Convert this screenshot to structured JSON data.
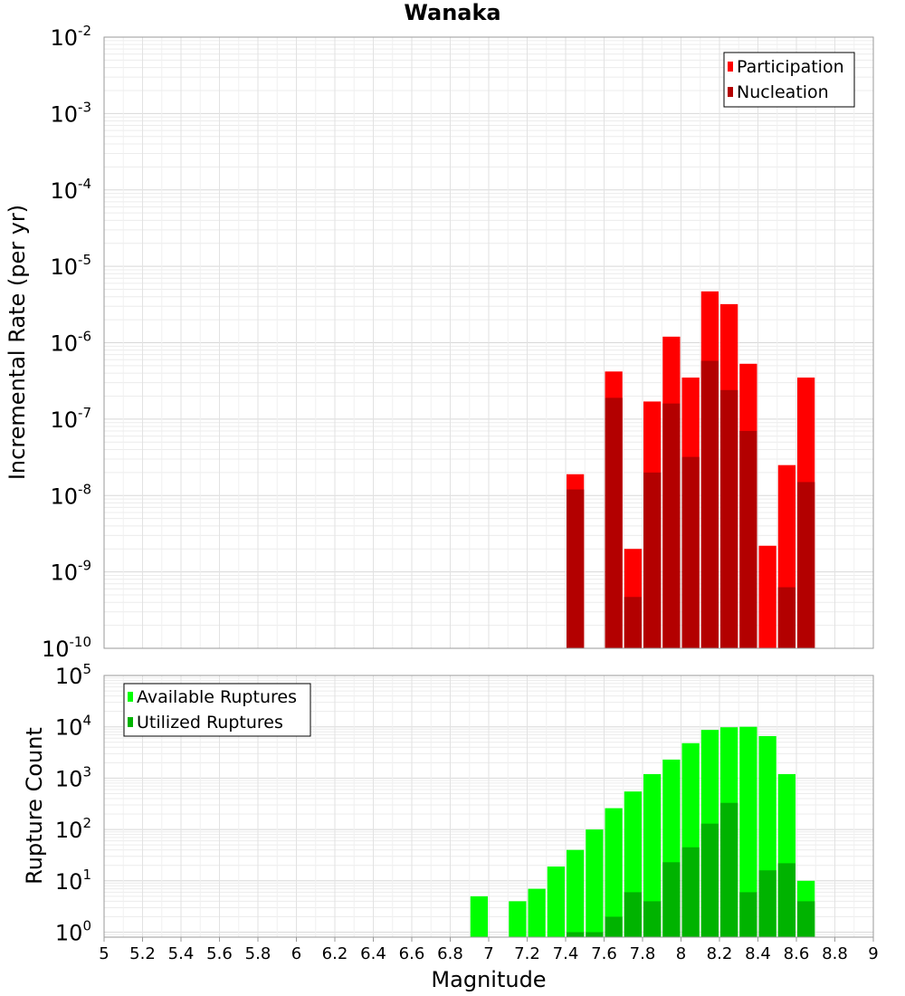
{
  "chart_data": [
    {
      "type": "bar",
      "title": "Wanaka",
      "xlabel": "",
      "ylabel": "Incremental Rate (per yr)",
      "yscale": "log",
      "ylim": [
        1e-10,
        0.01
      ],
      "xlim": [
        5,
        9
      ],
      "y_tick_exponents": [
        "-2",
        "-3",
        "-4",
        "-5",
        "-6",
        "-7",
        "-8",
        "-9",
        "-10"
      ],
      "grid": true,
      "legend_position": "top-right",
      "bar_width": 0.1,
      "series": [
        {
          "name": "Participation",
          "color": "#ff0000",
          "x": [
            7.45,
            7.65,
            7.75,
            7.85,
            7.95,
            8.05,
            8.15,
            8.25,
            8.35,
            8.45,
            8.55,
            8.65
          ],
          "values": [
            1.9e-08,
            4.2e-07,
            2e-09,
            1.7e-07,
            1.2e-06,
            3.5e-07,
            4.7e-06,
            3.2e-06,
            5.3e-07,
            2.2e-09,
            2.5e-08,
            3.5e-07
          ]
        },
        {
          "name": "Nucleation",
          "color": "#b30000",
          "x": [
            7.45,
            7.65,
            7.75,
            7.85,
            7.95,
            8.05,
            8.15,
            8.25,
            8.35,
            8.55,
            8.65
          ],
          "values": [
            1.2e-08,
            1.9e-07,
            4.7e-10,
            2e-08,
            1.6e-07,
            3.2e-08,
            5.8e-07,
            2.4e-07,
            7e-08,
            6.3e-10,
            1.5e-08
          ]
        }
      ]
    },
    {
      "type": "bar",
      "title": "",
      "xlabel": "Magnitude",
      "ylabel": "Rupture Count",
      "yscale": "log",
      "ylim": [
        0.8,
        100000.0
      ],
      "xlim": [
        5,
        9
      ],
      "x_ticks": [
        "5",
        "5.2",
        "5.4",
        "5.6",
        "5.8",
        "6",
        "6.2",
        "6.4",
        "6.6",
        "6.8",
        "7",
        "7.2",
        "7.4",
        "7.6",
        "7.8",
        "8",
        "8.2",
        "8.4",
        "8.6",
        "8.8",
        "9"
      ],
      "y_tick_exponents": [
        "5",
        "4",
        "3",
        "2",
        "1",
        "0"
      ],
      "grid": true,
      "legend_position": "top-left",
      "bar_width": 0.1,
      "series": [
        {
          "name": "Available Ruptures",
          "color": "#00ff00",
          "x": [
            6.95,
            7.15,
            7.25,
            7.35,
            7.45,
            7.55,
            7.65,
            7.75,
            7.85,
            7.95,
            8.05,
            8.15,
            8.25,
            8.35,
            8.45,
            8.55,
            8.65
          ],
          "values": [
            5,
            4,
            7,
            19,
            40,
            100,
            260,
            550,
            1200,
            2300,
            4800,
            8700,
            9800,
            10000,
            6600,
            1200,
            10
          ]
        },
        {
          "name": "Utilized Ruptures",
          "color": "#00b300",
          "x": [
            7.45,
            7.55,
            7.65,
            7.75,
            7.85,
            7.95,
            8.05,
            8.15,
            8.25,
            8.35,
            8.45,
            8.55,
            8.65
          ],
          "values": [
            1,
            1,
            2,
            6,
            4,
            23,
            45,
            130,
            330,
            6,
            16,
            22,
            4
          ]
        }
      ]
    }
  ]
}
